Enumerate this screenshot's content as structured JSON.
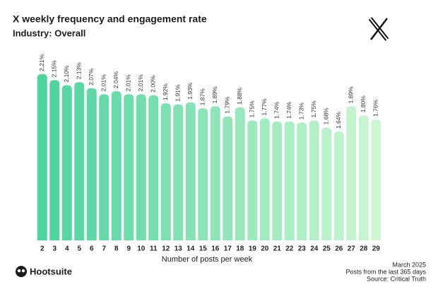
{
  "chart_data": {
    "type": "bar",
    "title": "X weekly frequency and engagement rate",
    "subtitle": "Industry: Overall",
    "x_label": "Number of posts per week",
    "categories": [
      "2",
      "3",
      "4",
      "5",
      "6",
      "7",
      "8",
      "9",
      "10",
      "11",
      "12",
      "13",
      "14",
      "15",
      "16",
      "17",
      "18",
      "19",
      "20",
      "21",
      "22",
      "23",
      "24",
      "25",
      "26",
      "27",
      "28",
      "29"
    ],
    "values": [
      2.21,
      2.15,
      2.1,
      2.13,
      2.07,
      2.01,
      2.04,
      2.01,
      2.01,
      2.0,
      1.92,
      1.91,
      1.93,
      1.87,
      1.89,
      1.79,
      1.88,
      1.75,
      1.77,
      1.74,
      1.74,
      1.73,
      1.75,
      1.68,
      1.64,
      1.89,
      1.8,
      1.76
    ],
    "value_labels": [
      "2.21%",
      "2.15%",
      "2.10%",
      "2.13%",
      "2.07%",
      "2.01%",
      "2.04%",
      "2.01%",
      "2.01%",
      "2.00%",
      "1.92%",
      "1.91%",
      "1.93%",
      "1.87%",
      "1.89%",
      "1.79%",
      "1.88%",
      "1.75%",
      "1.77%",
      "1.74%",
      "1.74%",
      "1.73%",
      "1.75%",
      "1.68%",
      "1.64%",
      "1.89%",
      "1.80%",
      "1.76%"
    ],
    "colors": [
      "#4dd39d",
      "#52d49f",
      "#56d6a1",
      "#5bd7a3",
      "#60d8a5",
      "#65d9a7",
      "#69dba9",
      "#6edcab",
      "#73ddad",
      "#77dfaf",
      "#7ce0b1",
      "#81e1b2",
      "#86e2b4",
      "#8ae4b6",
      "#8fe5b8",
      "#94e6ba",
      "#98e8bc",
      "#9de9be",
      "#a2eac0",
      "#a7ebc2",
      "#abedc4",
      "#b0eec6",
      "#b5efc8",
      "#b9f1ca",
      "#bef2cb",
      "#c3f3cd",
      "#c8f4cf",
      "#cdf6d1"
    ],
    "ylim": [
      0.56,
      2.3
    ],
    "footnotes": [
      "March 2025",
      "Posts from the last 365 days",
      "Source: Critical Truth"
    ],
    "brand": "Hootsuite"
  }
}
